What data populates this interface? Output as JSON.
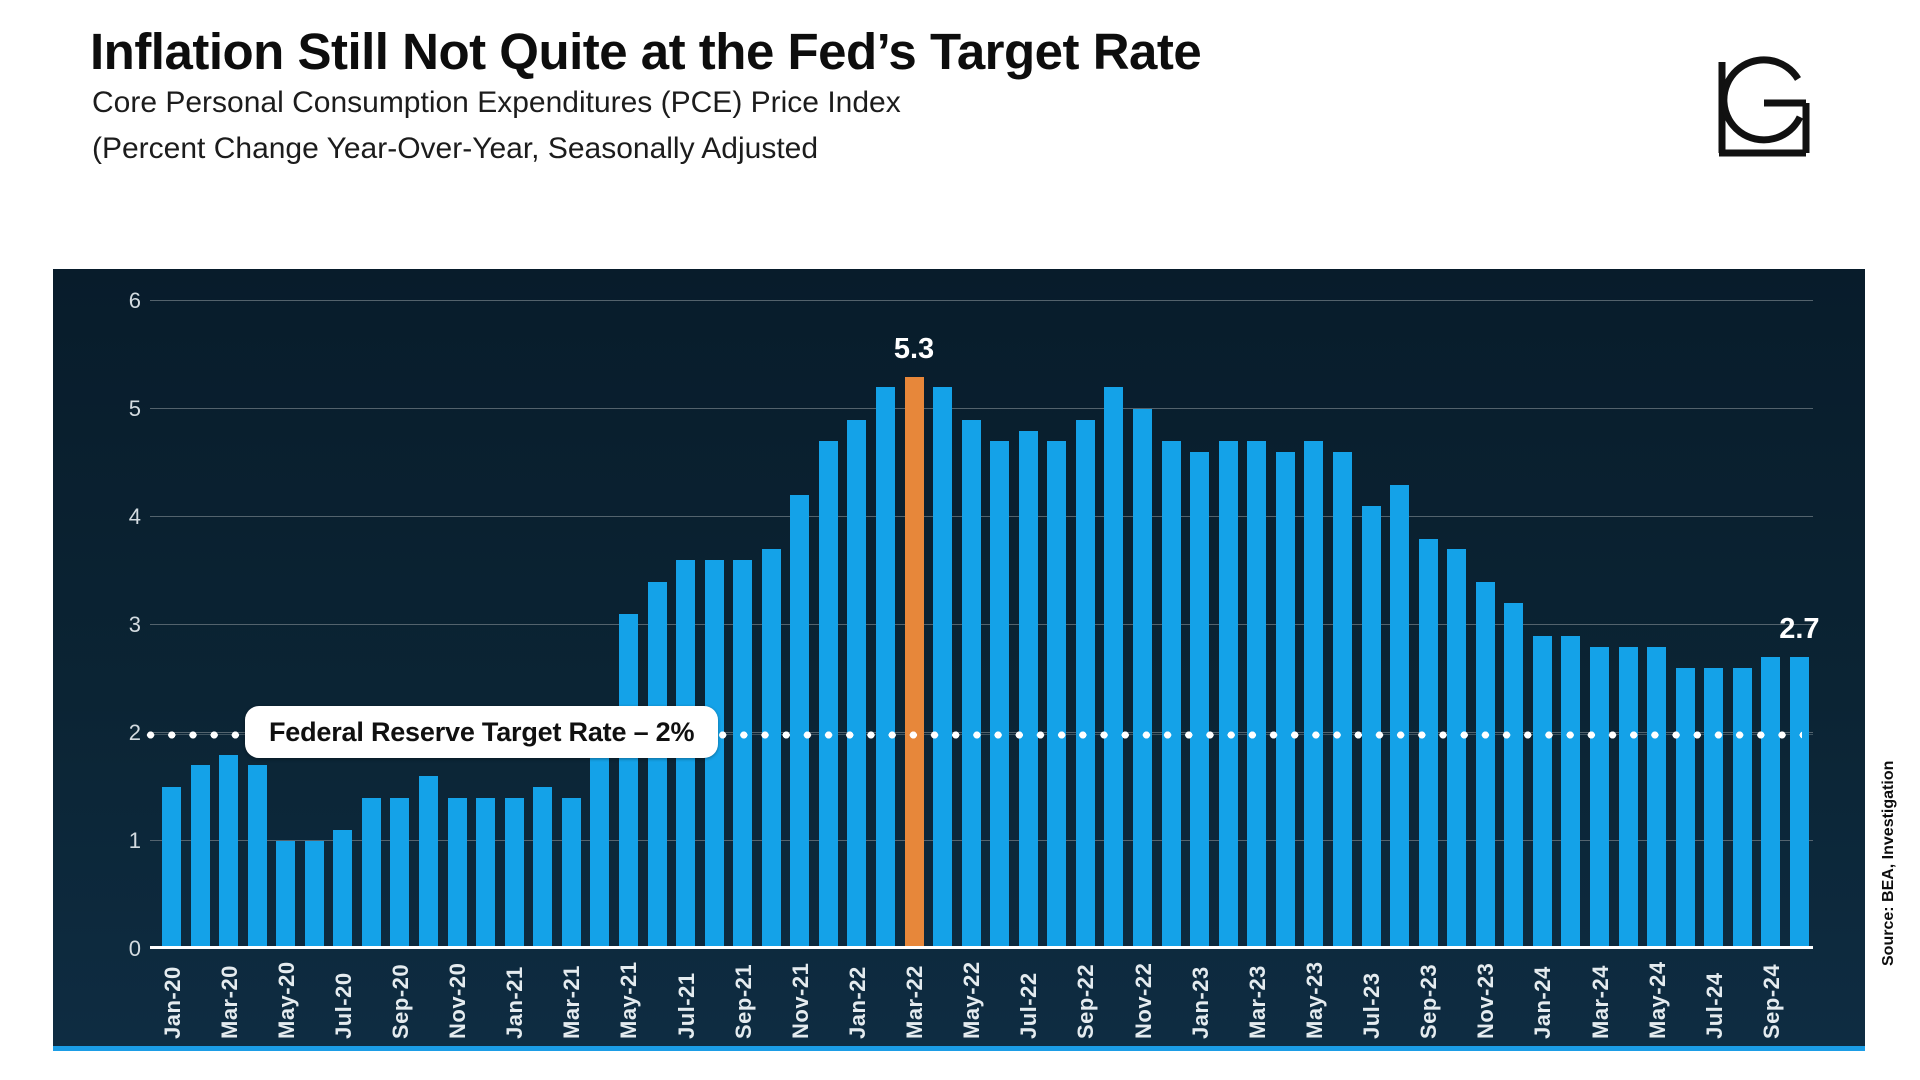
{
  "header": {
    "title": "Inflation Still Not Quite at the Fed’s Target Rate",
    "subtitle_line1": "Core Personal Consumption Expenditures (PCE) Price Index",
    "subtitle_line2": "(Percent Change Year-Over-Year, Seasonally Adjusted"
  },
  "logo": {
    "monogram": "LG"
  },
  "source_note": "Source: BEA, Investigation",
  "colors": {
    "bar": "#14a2e8",
    "highlight": "#e7873a",
    "panel_top": "#081c2b",
    "panel_bottom": "#0e2c42",
    "gridline": "#6c7a82",
    "axis_line": "#ffffff",
    "bottom_strip": "#1b9de6",
    "tick_text": "#d3dbe0",
    "value_label_text": "#ffffff"
  },
  "chart_data": {
    "type": "bar",
    "title": "Core PCE Price Index, percent change year-over-year",
    "xlabel": "",
    "ylabel": "",
    "ylim": [
      0,
      6
    ],
    "yticks": [
      0,
      1,
      2,
      3,
      4,
      5,
      6
    ],
    "grid": true,
    "x_tick_every": 2,
    "categories": [
      "Jan-20",
      "Feb-20",
      "Mar-20",
      "Apr-20",
      "May-20",
      "Jun-20",
      "Jul-20",
      "Aug-20",
      "Sep-20",
      "Oct-20",
      "Nov-20",
      "Dec-20",
      "Jan-21",
      "Feb-21",
      "Mar-21",
      "Apr-21",
      "May-21",
      "Jun-21",
      "Jul-21",
      "Aug-21",
      "Sep-21",
      "Oct-21",
      "Nov-21",
      "Dec-21",
      "Jan-22",
      "Feb-22",
      "Mar-22",
      "Apr-22",
      "May-22",
      "Jun-22",
      "Jul-22",
      "Aug-22",
      "Sep-22",
      "Oct-22",
      "Nov-22",
      "Dec-22",
      "Jan-23",
      "Feb-23",
      "Mar-23",
      "Apr-23",
      "May-23",
      "Jun-23",
      "Jul-23",
      "Aug-23",
      "Sep-23",
      "Oct-23",
      "Nov-23",
      "Dec-23",
      "Jan-24",
      "Feb-24",
      "Mar-24",
      "Apr-24",
      "May-24",
      "Jun-24",
      "Jul-24",
      "Aug-24",
      "Sep-24",
      "Oct-24"
    ],
    "values": [
      1.5,
      1.7,
      1.8,
      1.7,
      1.0,
      1.0,
      1.1,
      1.4,
      1.4,
      1.6,
      1.4,
      1.4,
      1.4,
      1.5,
      1.4,
      2.0,
      3.1,
      3.4,
      3.6,
      3.6,
      3.6,
      3.7,
      4.2,
      4.7,
      4.9,
      5.2,
      5.3,
      5.2,
      4.9,
      4.7,
      4.8,
      4.7,
      4.9,
      5.2,
      5.0,
      4.7,
      4.6,
      4.7,
      4.7,
      4.6,
      4.7,
      4.6,
      4.1,
      4.3,
      3.8,
      3.7,
      3.4,
      3.2,
      2.9,
      2.9,
      2.8,
      2.8,
      2.8,
      2.6,
      2.6,
      2.6,
      2.7,
      2.7
    ],
    "highlight_index": 26,
    "annotations": [
      {
        "index": 26,
        "text": "5.3"
      },
      {
        "index": 57,
        "text": "2.7"
      }
    ],
    "target_line": {
      "value": 2,
      "label": "Federal Reserve Target Rate – 2%"
    },
    "legend": null
  }
}
